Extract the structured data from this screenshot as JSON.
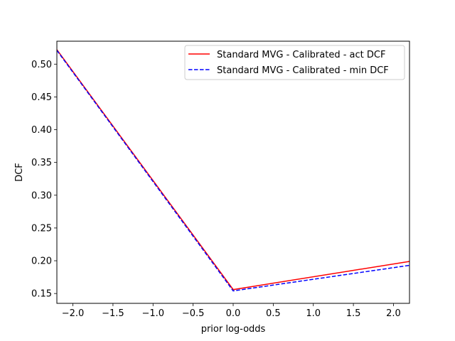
{
  "chart_data": {
    "type": "line",
    "xlabel": "prior log-odds",
    "ylabel": "DCF",
    "xlim": [
      -2.2,
      2.2
    ],
    "ylim": [
      0.135,
      0.535
    ],
    "xticks": [
      -2.0,
      -1.5,
      -1.0,
      -0.5,
      0.0,
      0.5,
      1.0,
      1.5,
      2.0
    ],
    "xtick_labels": [
      "−2.0",
      "−1.5",
      "−1.0",
      "−0.5",
      "0.0",
      "0.5",
      "1.0",
      "1.5",
      "2.0"
    ],
    "yticks": [
      0.15,
      0.2,
      0.25,
      0.3,
      0.35,
      0.4,
      0.45,
      0.5
    ],
    "ytick_labels": [
      "0.15",
      "0.20",
      "0.25",
      "0.30",
      "0.35",
      "0.40",
      "0.45",
      "0.50"
    ],
    "grid": false,
    "legend_position": "top-right",
    "series": [
      {
        "name": "Standard MVG - Calibrated - act DCF",
        "color": "#ff0000",
        "style": "solid",
        "x": [
          -2.2,
          0.0,
          2.2
        ],
        "y": [
          0.522,
          0.156,
          0.199
        ]
      },
      {
        "name": "Standard MVG - Calibrated - min DCF",
        "color": "#0000ff",
        "style": "dashed",
        "x": [
          -2.2,
          0.0,
          2.2
        ],
        "y": [
          0.521,
          0.154,
          0.193
        ]
      }
    ]
  }
}
